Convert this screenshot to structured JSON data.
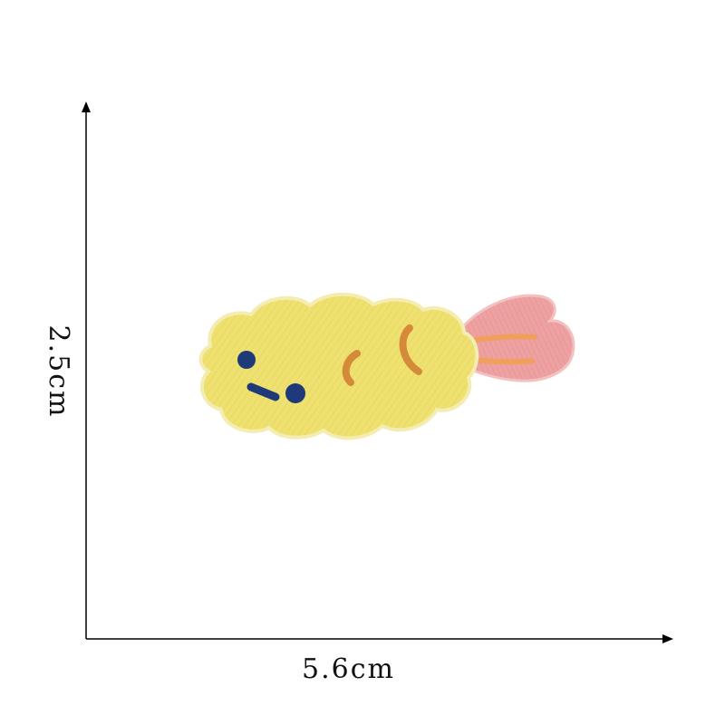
{
  "dimensions": {
    "width_label": "5.6cm",
    "height_label": "2.5cm"
  },
  "colors": {
    "batter": "#efe170",
    "batter_shadow": "#e0cf58",
    "tail": "#eea1a1",
    "tail_stripe": "#f0a05a",
    "face_dots": "#1e3a78",
    "crumb_marks": "#d58a3a",
    "axis": "#000000"
  },
  "icons": {
    "patch": "fried-shrimp-embroidered-patch"
  }
}
